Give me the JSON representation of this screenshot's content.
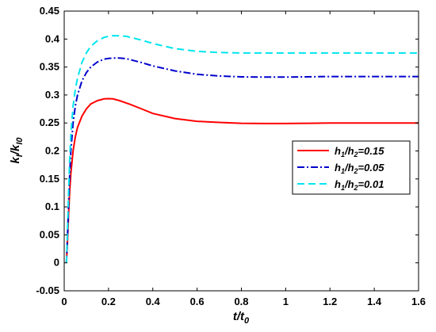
{
  "chart_data": {
    "type": "line",
    "xlabel": {
      "main": "t/t",
      "sub": "0"
    },
    "ylabel": {
      "main": "k",
      "sub1": "I",
      "mid": "/k",
      "sub2": "I0"
    },
    "xlim": [
      0,
      1.6
    ],
    "ylim": [
      -0.05,
      0.45
    ],
    "xticks": [
      "0",
      "0.2",
      "0.4",
      "0.6",
      "0.8",
      "1",
      "1.2",
      "1.4",
      "1.6"
    ],
    "yticks": [
      "-0.05",
      "0",
      "0.05",
      "0.1",
      "0.15",
      "0.2",
      "0.25",
      "0.3",
      "0.35",
      "0.4",
      "0.45"
    ],
    "grid": false,
    "legend_position": "center-right",
    "series": [
      {
        "name": "h1/h2=0.15",
        "legend": {
          "a": "h",
          "s1": "1",
          "b": "/h",
          "s2": "2",
          "c": "=0.15"
        },
        "color": "#ff0000",
        "dash": "solid",
        "x": [
          0.01,
          0.015,
          0.02,
          0.025,
          0.03,
          0.04,
          0.05,
          0.06,
          0.08,
          0.1,
          0.12,
          0.15,
          0.18,
          0.2,
          0.22,
          0.25,
          0.3,
          0.35,
          0.4,
          0.5,
          0.6,
          0.7,
          0.8,
          0.9,
          1.0,
          1.1,
          1.2,
          1.3,
          1.4,
          1.5,
          1.6
        ],
        "y": [
          0.0,
          0.04,
          0.09,
          0.13,
          0.16,
          0.2,
          0.225,
          0.242,
          0.262,
          0.275,
          0.284,
          0.29,
          0.293,
          0.2935,
          0.293,
          0.29,
          0.283,
          0.275,
          0.267,
          0.258,
          0.253,
          0.251,
          0.2495,
          0.249,
          0.249,
          0.2495,
          0.25,
          0.25,
          0.25,
          0.25,
          0.25
        ]
      },
      {
        "name": "h1/h2=0.05",
        "legend": {
          "a": "h",
          "s1": "1",
          "b": "/h",
          "s2": "2",
          "c": "=0.05"
        },
        "color": "#0000cc",
        "dash": "dashdot",
        "x": [
          0.01,
          0.015,
          0.02,
          0.025,
          0.03,
          0.04,
          0.05,
          0.06,
          0.08,
          0.1,
          0.12,
          0.15,
          0.18,
          0.2,
          0.22,
          0.25,
          0.28,
          0.3,
          0.35,
          0.4,
          0.5,
          0.6,
          0.7,
          0.8,
          0.9,
          1.0,
          1.2,
          1.4,
          1.6
        ],
        "y": [
          0.0,
          0.05,
          0.11,
          0.16,
          0.2,
          0.25,
          0.28,
          0.3,
          0.325,
          0.34,
          0.35,
          0.359,
          0.364,
          0.3655,
          0.366,
          0.366,
          0.365,
          0.363,
          0.358,
          0.352,
          0.343,
          0.337,
          0.334,
          0.3325,
          0.332,
          0.332,
          0.333,
          0.333,
          0.333
        ]
      },
      {
        "name": "h1/h2=0.01",
        "legend": {
          "a": "h",
          "s1": "1",
          "b": "/h",
          "s2": "2",
          "c": "=0.01"
        },
        "color": "#00e5ee",
        "dash": "dash",
        "x": [
          0.01,
          0.015,
          0.02,
          0.025,
          0.03,
          0.04,
          0.05,
          0.06,
          0.08,
          0.1,
          0.12,
          0.15,
          0.18,
          0.2,
          0.22,
          0.25,
          0.28,
          0.3,
          0.35,
          0.4,
          0.5,
          0.6,
          0.7,
          0.8,
          0.9,
          1.0,
          1.2,
          1.4,
          1.6
        ],
        "y": [
          0.0,
          0.06,
          0.13,
          0.19,
          0.23,
          0.28,
          0.31,
          0.33,
          0.358,
          0.375,
          0.387,
          0.397,
          0.403,
          0.405,
          0.406,
          0.406,
          0.405,
          0.403,
          0.398,
          0.392,
          0.383,
          0.378,
          0.376,
          0.375,
          0.375,
          0.375,
          0.375,
          0.375,
          0.375
        ]
      }
    ]
  }
}
